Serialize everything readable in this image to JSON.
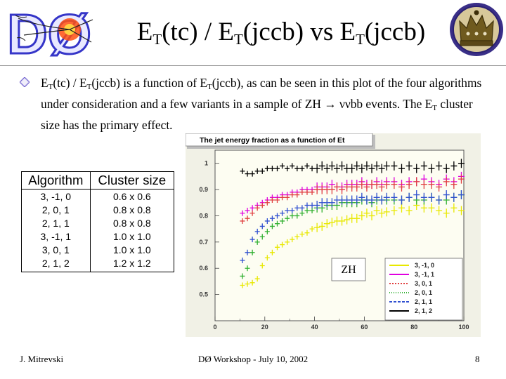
{
  "slide": {
    "title": {
      "p1": "E",
      "s1": "T",
      "p2": "(tc) / E",
      "s2": "T",
      "p3": "(jccb) vs E",
      "s3": "T",
      "p4": "(jccb)"
    },
    "logo_text": "DØ",
    "bullet": {
      "a": "E",
      "a_sub": "T",
      "b": "(tc) / E",
      "b_sub": "T",
      "c": "(jccb) is a function of E",
      "c_sub": "T",
      "d": "(jccb), as can be seen in this plot of the four algorithms under consideration and a few variants in a sample of ZH ",
      "arrow": "→",
      "e": " ννbb events. The E",
      "e_sub": "T",
      "f": " cluster size has the primary effect."
    },
    "table": {
      "headers": [
        "Algorithm",
        "Cluster size"
      ],
      "rows": [
        [
          "3, -1, 0",
          "0.6 x 0.6"
        ],
        [
          "2, 0, 1",
          "0.8 x 0.8"
        ],
        [
          "2, 1, 1",
          "0.8 x 0.8"
        ],
        [
          "3, -1, 1",
          "1.0 x 1.0"
        ],
        [
          "3, 0, 1",
          "1.0 x 1.0"
        ],
        [
          "2, 1, 2",
          "1.2 x 1.2"
        ]
      ]
    },
    "footer": {
      "left": "J. Mitrevski",
      "center": "DØ Workshop - July 10, 2002",
      "page": "8"
    }
  },
  "chart_data": {
    "type": "scatter",
    "title": "The jet energy fraction as a function of Et",
    "xlabel": "",
    "ylabel": "",
    "xlim": [
      0,
      100
    ],
    "ylim": [
      0.4,
      1.05
    ],
    "xticks": [
      "0",
      "20",
      "40",
      "60",
      "80",
      "100"
    ],
    "yticks": [
      "0.5",
      "0.6",
      "0.7",
      "0.8",
      "0.9",
      "1"
    ],
    "annotation": "ZH",
    "legend_position": "bottom-right",
    "background_color": "#fdfdf2",
    "series": [
      {
        "name": "3, -1, 0",
        "color": "#e8e800",
        "x": [
          11,
          13,
          15,
          17,
          19,
          21,
          23,
          25,
          27,
          29,
          31,
          33,
          35,
          37,
          39,
          41,
          43,
          45,
          47,
          49,
          51,
          53,
          55,
          57,
          59,
          61,
          63,
          65,
          67,
          69,
          72,
          75,
          78,
          81,
          84,
          87,
          90,
          93,
          96,
          99
        ],
        "y": [
          0.535,
          0.54,
          0.545,
          0.56,
          0.61,
          0.64,
          0.66,
          0.68,
          0.69,
          0.7,
          0.71,
          0.72,
          0.73,
          0.735,
          0.75,
          0.755,
          0.76,
          0.77,
          0.775,
          0.78,
          0.78,
          0.785,
          0.79,
          0.79,
          0.8,
          0.81,
          0.8,
          0.82,
          0.81,
          0.815,
          0.82,
          0.83,
          0.82,
          0.84,
          0.83,
          0.83,
          0.82,
          0.81,
          0.83,
          0.82
        ]
      },
      {
        "name": "3, -1, 1",
        "color": "#e000e0",
        "x": [
          11,
          13,
          15,
          17,
          19,
          21,
          23,
          25,
          27,
          29,
          31,
          33,
          35,
          37,
          39,
          41,
          43,
          45,
          47,
          49,
          51,
          53,
          55,
          57,
          59,
          61,
          63,
          65,
          67,
          69,
          72,
          75,
          78,
          81,
          84,
          87,
          90,
          93,
          96,
          99
        ],
        "y": [
          0.81,
          0.82,
          0.83,
          0.84,
          0.85,
          0.86,
          0.87,
          0.87,
          0.88,
          0.88,
          0.89,
          0.89,
          0.9,
          0.9,
          0.9,
          0.91,
          0.91,
          0.91,
          0.92,
          0.91,
          0.91,
          0.92,
          0.92,
          0.92,
          0.93,
          0.92,
          0.92,
          0.93,
          0.92,
          0.93,
          0.93,
          0.92,
          0.93,
          0.93,
          0.94,
          0.93,
          0.92,
          0.94,
          0.93,
          0.95
        ]
      },
      {
        "name": "3, 0, 1",
        "color": "#e04040",
        "x": [
          11,
          13,
          15,
          17,
          19,
          21,
          23,
          25,
          27,
          29,
          31,
          33,
          35,
          37,
          39,
          41,
          43,
          45,
          47,
          49,
          51,
          53,
          55,
          57,
          59,
          61,
          63,
          65,
          67,
          69,
          72,
          75,
          78,
          81,
          84,
          87,
          90,
          93,
          96,
          99
        ],
        "y": [
          0.78,
          0.79,
          0.81,
          0.83,
          0.84,
          0.85,
          0.86,
          0.86,
          0.87,
          0.87,
          0.88,
          0.88,
          0.89,
          0.89,
          0.89,
          0.9,
          0.9,
          0.9,
          0.9,
          0.91,
          0.9,
          0.91,
          0.91,
          0.91,
          0.92,
          0.91,
          0.92,
          0.92,
          0.91,
          0.92,
          0.92,
          0.91,
          0.92,
          0.93,
          0.92,
          0.92,
          0.91,
          0.93,
          0.92,
          0.94
        ]
      },
      {
        "name": "2, 0, 1",
        "color": "#30b030",
        "x": [
          11,
          13,
          15,
          17,
          19,
          21,
          23,
          25,
          27,
          29,
          31,
          33,
          35,
          37,
          39,
          41,
          43,
          45,
          47,
          49,
          51,
          53,
          55,
          57,
          59,
          61,
          63,
          65,
          67,
          69,
          72,
          75,
          78,
          81,
          84,
          87,
          90,
          93,
          96,
          99
        ],
        "y": [
          0.57,
          0.6,
          0.66,
          0.7,
          0.72,
          0.74,
          0.76,
          0.77,
          0.78,
          0.79,
          0.8,
          0.8,
          0.81,
          0.82,
          0.82,
          0.83,
          0.83,
          0.84,
          0.84,
          0.84,
          0.85,
          0.85,
          0.85,
          0.85,
          0.86,
          0.86,
          0.85,
          0.86,
          0.86,
          0.86,
          0.86,
          0.86,
          0.87,
          0.86,
          0.86,
          0.87,
          0.86,
          0.86,
          0.87,
          0.88
        ]
      },
      {
        "name": "2, 1, 1",
        "color": "#3050d0",
        "x": [
          11,
          13,
          15,
          17,
          19,
          21,
          23,
          25,
          27,
          29,
          31,
          33,
          35,
          37,
          39,
          41,
          43,
          45,
          47,
          49,
          51,
          53,
          55,
          57,
          59,
          61,
          63,
          65,
          67,
          69,
          72,
          75,
          78,
          81,
          84,
          87,
          90,
          93,
          96,
          99
        ],
        "y": [
          0.63,
          0.66,
          0.71,
          0.74,
          0.76,
          0.78,
          0.79,
          0.8,
          0.81,
          0.82,
          0.82,
          0.83,
          0.83,
          0.84,
          0.84,
          0.84,
          0.85,
          0.85,
          0.85,
          0.86,
          0.86,
          0.86,
          0.86,
          0.86,
          0.87,
          0.86,
          0.86,
          0.87,
          0.86,
          0.87,
          0.87,
          0.86,
          0.87,
          0.88,
          0.87,
          0.87,
          0.86,
          0.88,
          0.87,
          0.88
        ]
      },
      {
        "name": "2, 1, 2",
        "color": "#000000",
        "x": [
          11,
          13,
          15,
          17,
          19,
          21,
          23,
          25,
          27,
          29,
          31,
          33,
          35,
          37,
          39,
          41,
          43,
          45,
          47,
          49,
          51,
          53,
          55,
          57,
          59,
          61,
          63,
          65,
          67,
          69,
          72,
          75,
          78,
          81,
          84,
          87,
          90,
          93,
          96,
          99
        ],
        "y": [
          0.97,
          0.96,
          0.96,
          0.97,
          0.97,
          0.98,
          0.98,
          0.98,
          0.99,
          0.98,
          0.99,
          0.98,
          0.98,
          0.99,
          0.98,
          0.98,
          0.99,
          0.98,
          0.99,
          0.98,
          0.99,
          0.98,
          0.98,
          0.99,
          0.98,
          0.99,
          0.98,
          0.99,
          0.98,
          0.99,
          0.99,
          0.98,
          0.99,
          0.98,
          0.99,
          0.98,
          0.99,
          0.98,
          0.99,
          1.0
        ]
      }
    ]
  }
}
